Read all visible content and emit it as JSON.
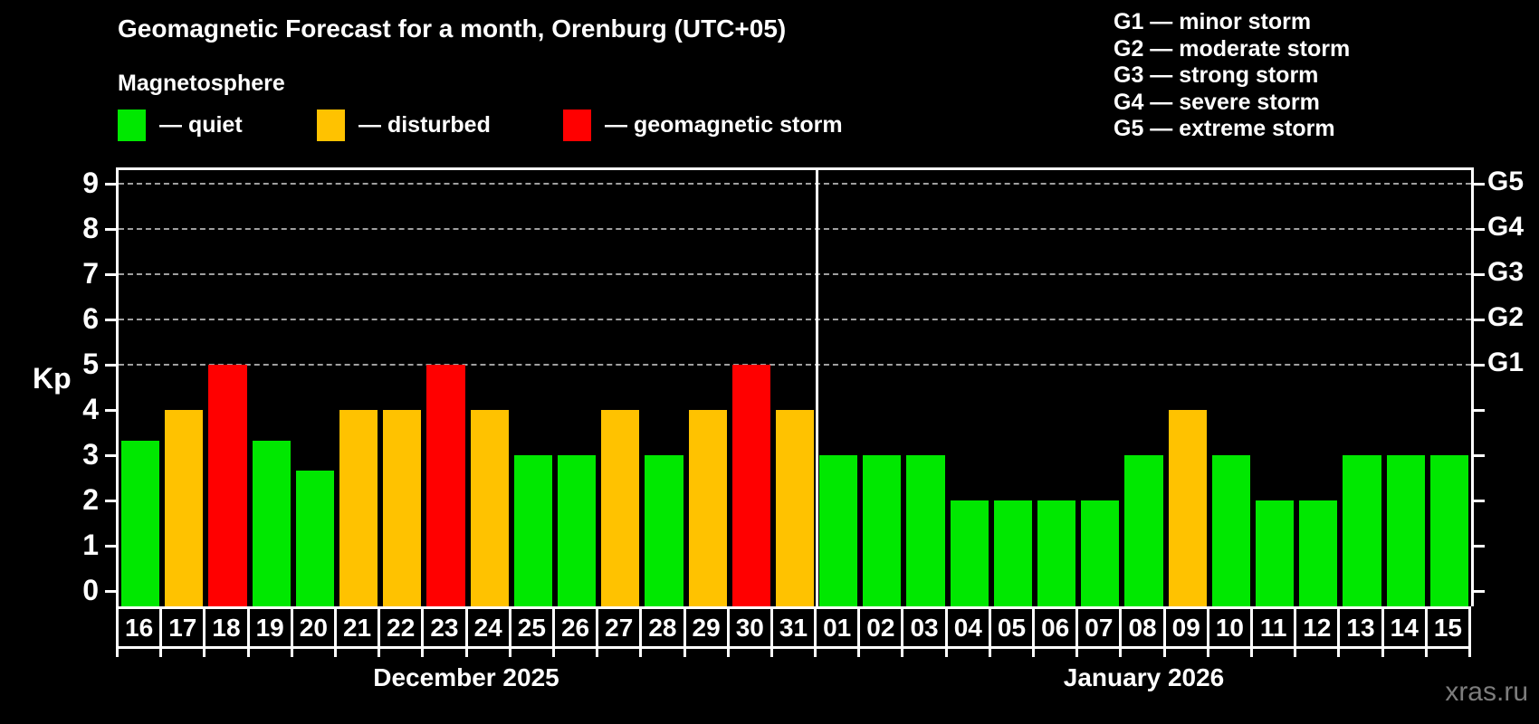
{
  "header": {
    "title": "Geomagnetic Forecast for a month, Orenburg (UTC+05)",
    "subtitle": "Magnetosphere"
  },
  "legend": {
    "quiet": "— quiet",
    "disturbed": "— disturbed",
    "storm": "— geomagnetic storm"
  },
  "storm_scale": {
    "lines": [
      "G1 — minor storm",
      "G2 — moderate storm",
      "G3 — strong storm",
      "G4 — severe storm",
      "G5 — extreme storm"
    ]
  },
  "colors": {
    "quiet": "#00E800",
    "disturbed": "#FFC200",
    "storm": "#FF0000",
    "grid": "#A0A0A0",
    "axis": "#FFFFFF",
    "background": "#000000",
    "watermark": "#7D7D7D"
  },
  "watermark": "xras.ru",
  "chart_data": {
    "type": "bar",
    "title": "Geomagnetic Forecast for a month, Orenburg (UTC+05)",
    "subtitle": "Magnetosphere",
    "ylabel": "Kp",
    "ylim": [
      0,
      9.35
    ],
    "y_ticks": [
      0,
      1,
      2,
      3,
      4,
      5,
      6,
      7,
      8,
      9
    ],
    "grid_levels": [
      5,
      6,
      7,
      8,
      9
    ],
    "grid_style": "dashed horizontal",
    "legend_position": "top",
    "right_axis": [
      {
        "kp": 5,
        "label": "G1"
      },
      {
        "kp": 6,
        "label": "G2"
      },
      {
        "kp": 7,
        "label": "G3"
      },
      {
        "kp": 8,
        "label": "G4"
      },
      {
        "kp": 9,
        "label": "G5"
      }
    ],
    "months": [
      {
        "label": "December 2025",
        "days": [
          {
            "day": "16",
            "kp": 3.33,
            "status": "quiet"
          },
          {
            "day": "17",
            "kp": 4,
            "status": "disturbed"
          },
          {
            "day": "18",
            "kp": 5,
            "status": "storm"
          },
          {
            "day": "19",
            "kp": 3.33,
            "status": "quiet"
          },
          {
            "day": "20",
            "kp": 2.67,
            "status": "quiet"
          },
          {
            "day": "21",
            "kp": 4,
            "status": "disturbed"
          },
          {
            "day": "22",
            "kp": 4,
            "status": "disturbed"
          },
          {
            "day": "23",
            "kp": 5,
            "status": "storm"
          },
          {
            "day": "24",
            "kp": 4,
            "status": "disturbed"
          },
          {
            "day": "25",
            "kp": 3,
            "status": "quiet"
          },
          {
            "day": "26",
            "kp": 3,
            "status": "quiet"
          },
          {
            "day": "27",
            "kp": 4,
            "status": "disturbed"
          },
          {
            "day": "28",
            "kp": 3,
            "status": "quiet"
          },
          {
            "day": "29",
            "kp": 4,
            "status": "disturbed"
          },
          {
            "day": "30",
            "kp": 5,
            "status": "storm"
          },
          {
            "day": "31",
            "kp": 4,
            "status": "disturbed"
          }
        ]
      },
      {
        "label": "January 2026",
        "days": [
          {
            "day": "01",
            "kp": 3,
            "status": "quiet"
          },
          {
            "day": "02",
            "kp": 3,
            "status": "quiet"
          },
          {
            "day": "03",
            "kp": 3,
            "status": "quiet"
          },
          {
            "day": "04",
            "kp": 2,
            "status": "quiet"
          },
          {
            "day": "05",
            "kp": 2,
            "status": "quiet"
          },
          {
            "day": "06",
            "kp": 2,
            "status": "quiet"
          },
          {
            "day": "07",
            "kp": 2,
            "status": "quiet"
          },
          {
            "day": "08",
            "kp": 3,
            "status": "quiet"
          },
          {
            "day": "09",
            "kp": 4,
            "status": "disturbed"
          },
          {
            "day": "10",
            "kp": 3,
            "status": "quiet"
          },
          {
            "day": "11",
            "kp": 2,
            "status": "quiet"
          },
          {
            "day": "12",
            "kp": 2,
            "status": "quiet"
          },
          {
            "day": "13",
            "kp": 3,
            "status": "quiet"
          },
          {
            "day": "14",
            "kp": 3,
            "status": "quiet"
          },
          {
            "day": "15",
            "kp": 3,
            "status": "quiet"
          }
        ]
      }
    ]
  }
}
